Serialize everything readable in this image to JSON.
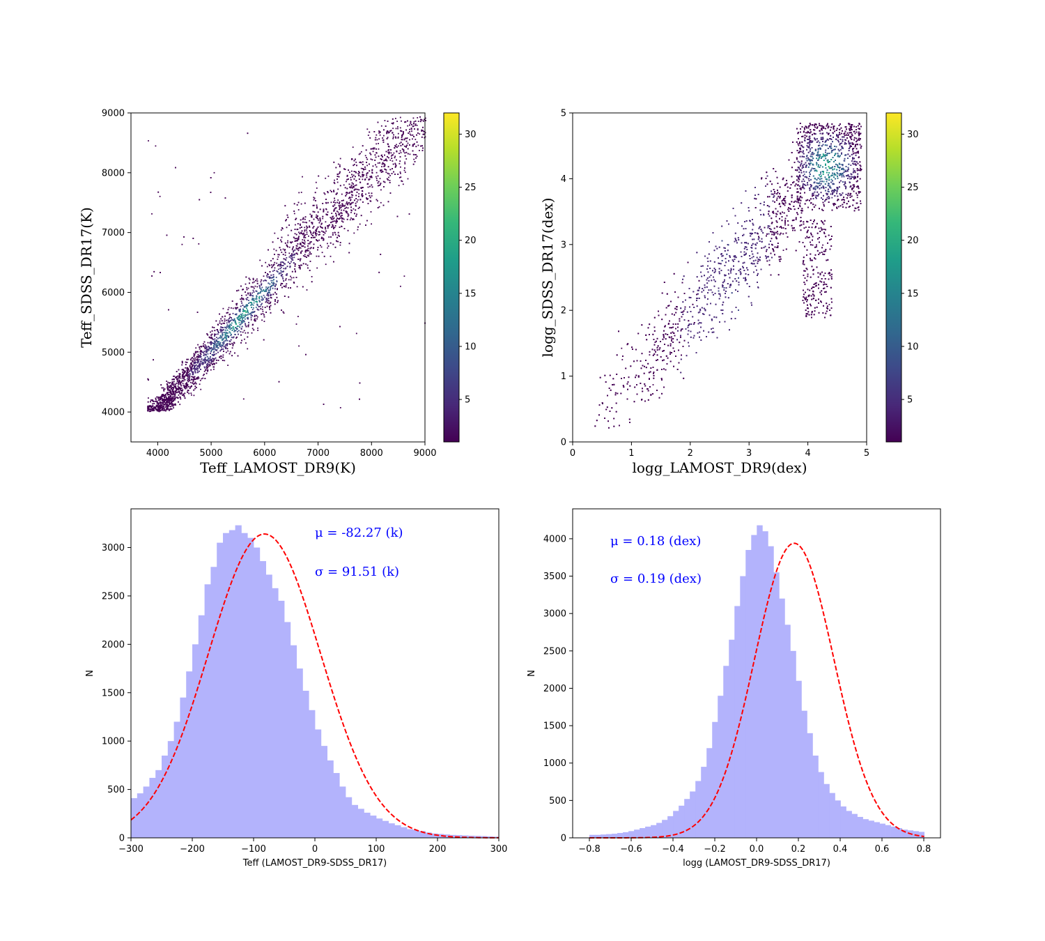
{
  "colors": {
    "hist_fill": "#b3b3fc",
    "fit_line": "#ff0000",
    "annotation": "#0000ff",
    "viridis": [
      "#440154",
      "#482878",
      "#3e4989",
      "#31688e",
      "#26828e",
      "#1f9e89",
      "#35b779",
      "#6ece58",
      "#b5de2b",
      "#fde725"
    ]
  },
  "chart_data": [
    {
      "id": "teff-scatter",
      "type": "scatter",
      "xlabel": "Teff_LAMOST_DR9(K)",
      "ylabel": "Teff_SDSS_DR17(K)",
      "xlim": [
        3500,
        9000
      ],
      "ylim": [
        3500,
        9000
      ],
      "xticks": [
        "4000",
        "5000",
        "6000",
        "7000",
        "8000",
        "9000"
      ],
      "yticks": [
        "4000",
        "5000",
        "6000",
        "7000",
        "8000",
        "9000"
      ],
      "density_colormap": "viridis",
      "relation": "y ≈ x, dense band from 3800 to 9000 K, density peak near 5400–6200 K",
      "colorbar": {
        "range": [
          1,
          32
        ],
        "ticks": [
          "5",
          "10",
          "15",
          "20",
          "25",
          "30"
        ]
      }
    },
    {
      "id": "logg-scatter",
      "type": "scatter",
      "xlabel": "logg_LAMOST_DR9(dex)",
      "ylabel": "logg_SDSS_DR17(dex)",
      "xlim": [
        0,
        5
      ],
      "ylim": [
        0,
        5
      ],
      "xticks": [
        "0",
        "1",
        "2",
        "3",
        "4",
        "5"
      ],
      "yticks": [
        "0",
        "1",
        "2",
        "3",
        "4",
        "5"
      ],
      "density_colormap": "viridis",
      "relation": "y ≈ x, dense clump near (4.2–4.7, 4.0–4.5), secondary plume near x≈4.1, y 2–3",
      "colorbar": {
        "range": [
          1,
          32
        ],
        "ticks": [
          "5",
          "10",
          "15",
          "20",
          "25",
          "30"
        ]
      }
    },
    {
      "id": "teff-hist",
      "type": "bar",
      "xlabel": "Teff (LAMOST_DR9-SDSS_DR17)",
      "ylabel": "N",
      "xlim": [
        -300,
        300
      ],
      "ylim": [
        0,
        3400
      ],
      "xticks": [
        "−300",
        "−200",
        "−100",
        "0",
        "100",
        "200",
        "300"
      ],
      "yticks": [
        "0",
        "500",
        "1000",
        "1500",
        "2000",
        "2500",
        "3000"
      ],
      "bin_start": -300,
      "bin_width": 10,
      "values": [
        410,
        460,
        530,
        620,
        700,
        850,
        1000,
        1200,
        1450,
        1720,
        2000,
        2300,
        2620,
        2800,
        3050,
        3150,
        3180,
        3230,
        3150,
        3100,
        3000,
        2860,
        2720,
        2580,
        2450,
        2230,
        1990,
        1750,
        1520,
        1320,
        1120,
        950,
        800,
        670,
        530,
        420,
        340,
        300,
        260,
        230,
        200,
        175,
        150,
        130,
        110,
        90,
        80,
        70,
        55,
        45,
        40,
        35,
        30,
        28,
        25,
        22,
        20,
        18,
        15,
        12
      ],
      "fit": {
        "mu": -82.27,
        "sigma": 91.51,
        "amplitude": 3140
      },
      "annotations": [
        "μ = -82.27 (k)",
        "σ = 91.51 (k)"
      ]
    },
    {
      "id": "logg-hist",
      "type": "bar",
      "xlabel": "logg (LAMOST_DR9-SDSS_DR17)",
      "ylabel": "N",
      "xlim": [
        -0.88,
        0.88
      ],
      "ylim": [
        0,
        4400
      ],
      "xticks": [
        "−0.8",
        "−0.6",
        "−0.4",
        "−0.2",
        "0.0",
        "0.2",
        "0.4",
        "0.6",
        "0.8"
      ],
      "yticks": [
        "0",
        "500",
        "1000",
        "1500",
        "2000",
        "2500",
        "3000",
        "3500",
        "4000"
      ],
      "bin_start": -0.8,
      "bin_width": 0.0267,
      "values": [
        40,
        40,
        45,
        50,
        55,
        65,
        75,
        90,
        110,
        130,
        150,
        170,
        200,
        240,
        290,
        360,
        430,
        520,
        620,
        760,
        950,
        1200,
        1550,
        1900,
        2300,
        2650,
        3100,
        3500,
        3850,
        4050,
        4180,
        4100,
        3900,
        3550,
        3200,
        2850,
        2500,
        2100,
        1700,
        1400,
        1100,
        880,
        720,
        600,
        500,
        420,
        360,
        320,
        280,
        250,
        230,
        210,
        190,
        170,
        150,
        130,
        110,
        100,
        90,
        80
      ],
      "fit": {
        "mu": 0.18,
        "sigma": 0.19,
        "amplitude": 3940
      },
      "annotations": [
        "μ = 0.18 (dex)",
        "σ = 0.19 (dex)"
      ]
    }
  ]
}
